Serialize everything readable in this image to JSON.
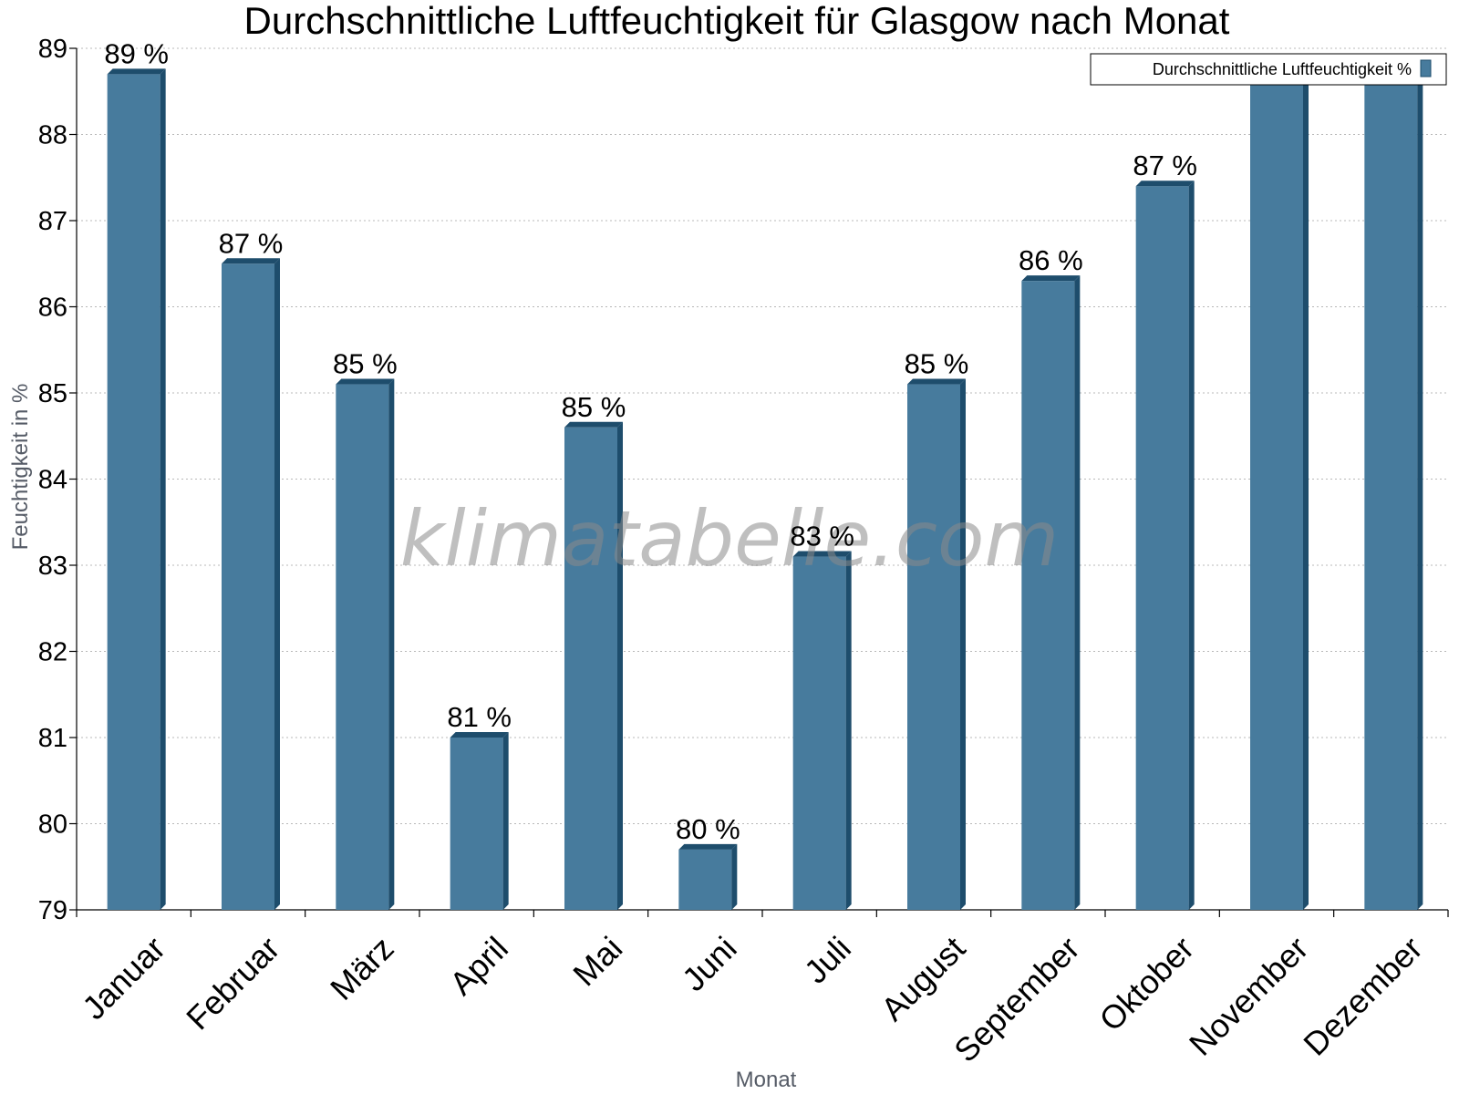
{
  "colors": {
    "bar_face": "#477b9d",
    "bar_side": "#1e4d6c",
    "bar_top": "#1e4d6c",
    "grid": "#b8b8b8"
  },
  "watermark": "klimatabelle.com",
  "chart_data": {
    "type": "bar",
    "title": "Durchschnittliche Luftfeuchtigkeit für Glasgow nach Monat",
    "xlabel": "Monat",
    "ylabel": "Feuchtigkeit in %",
    "ylim": [
      79,
      89
    ],
    "yticks": [
      79,
      80,
      81,
      82,
      83,
      84,
      85,
      86,
      87,
      88,
      89
    ],
    "grid": true,
    "legend_position": "top-right",
    "categories": [
      "Januar",
      "Februar",
      "März",
      "April",
      "Mai",
      "Juni",
      "Juli",
      "August",
      "September",
      "Oktober",
      "November",
      "Dezember"
    ],
    "series": [
      {
        "name": "Durchschnittliche Luftfeuchtigkeit %",
        "values": [
          88.7,
          86.5,
          85.1,
          81.0,
          84.6,
          79.7,
          83.1,
          85.1,
          86.3,
          87.4,
          88.6,
          88.6
        ],
        "labels": [
          "89 %",
          "87 %",
          "85 %",
          "81 %",
          "85 %",
          "80 %",
          "83 %",
          "85 %",
          "86 %",
          "87 %",
          "",
          ""
        ]
      }
    ]
  }
}
